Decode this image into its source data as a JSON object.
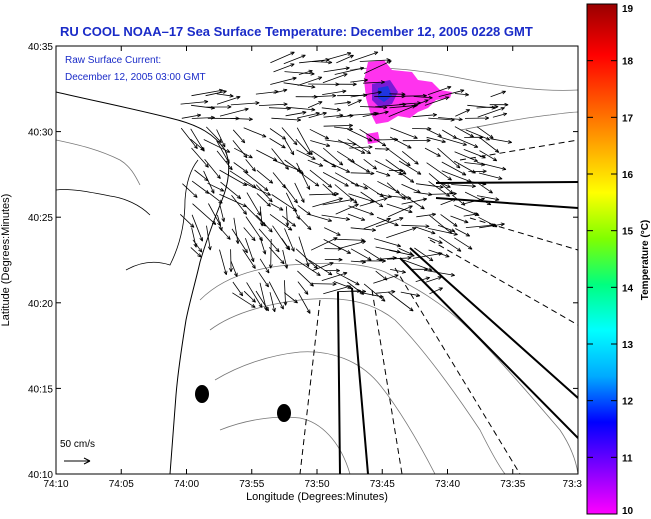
{
  "title": "RU COOL  NOAA–17  Sea Surface Temperature:  December 12, 2005 0228 GMT",
  "annotation": {
    "line1": "Raw Surface Current:",
    "line2": "December 12, 2005 03:00 GMT"
  },
  "scale_label": "50 cm/s",
  "axes": {
    "xlabel": "Longitude (Degrees:Minutes)",
    "ylabel": "Latitude (Degrees:Minutes)",
    "x_ticks": [
      "74:10",
      "74:05",
      "74:00",
      "73:55",
      "73:50",
      "73:45",
      "73:40",
      "73:35",
      "73:3"
    ],
    "y_ticks": [
      "40:35",
      "40:30",
      "40:25",
      "40:20",
      "40:15",
      "40:10"
    ]
  },
  "colorbar": {
    "label": "Temperature (°C)",
    "ticks": [
      "19",
      "18",
      "17",
      "16",
      "15",
      "14",
      "13",
      "12",
      "11",
      "10"
    ],
    "min": 10,
    "max": 19,
    "stops": [
      "#ff00ff",
      "#8000ff",
      "#0000ff",
      "#00aaff",
      "#00ffff",
      "#00ff80",
      "#80ff00",
      "#ffff00",
      "#ffaa00",
      "#ff5500",
      "#ff0000",
      "#990000"
    ]
  }
}
